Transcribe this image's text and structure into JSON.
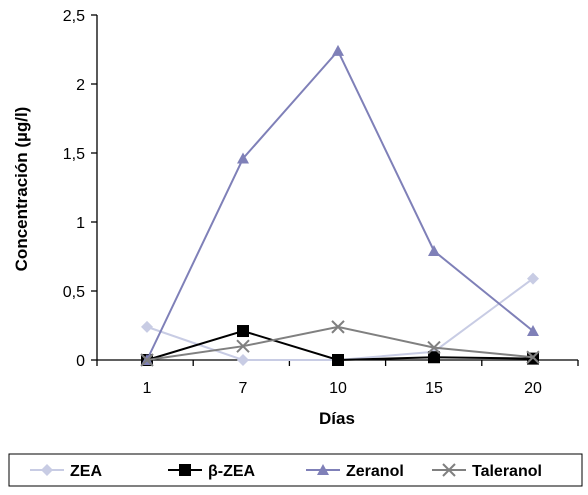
{
  "chart_data": {
    "type": "line",
    "categories": [
      "1",
      "7",
      "10",
      "15",
      "20"
    ],
    "xlabel": "Días",
    "ylabel": "Concentración (µg/l)",
    "ylim": [
      0,
      2.5
    ],
    "yticks": [
      "0",
      "0,5",
      "1",
      "1,5",
      "2",
      "2,5"
    ],
    "grid": false,
    "legend_position": "bottom",
    "series": [
      {
        "name": "ZEA",
        "values": [
          0.24,
          0.0,
          0.0,
          0.06,
          0.59
        ],
        "color": "#c8cce4",
        "marker": "diamond"
      },
      {
        "name": "β-ZEA",
        "values": [
          0.0,
          0.21,
          0.0,
          0.02,
          0.01
        ],
        "color": "#000000",
        "marker": "square"
      },
      {
        "name": "Zeranol",
        "values": [
          0.0,
          1.46,
          2.24,
          0.79,
          0.21
        ],
        "color": "#7f80b8",
        "marker": "triangle"
      },
      {
        "name": "Taleranol",
        "values": [
          0.0,
          0.1,
          0.24,
          0.09,
          0.02
        ],
        "color": "#808080",
        "marker": "x"
      }
    ]
  }
}
